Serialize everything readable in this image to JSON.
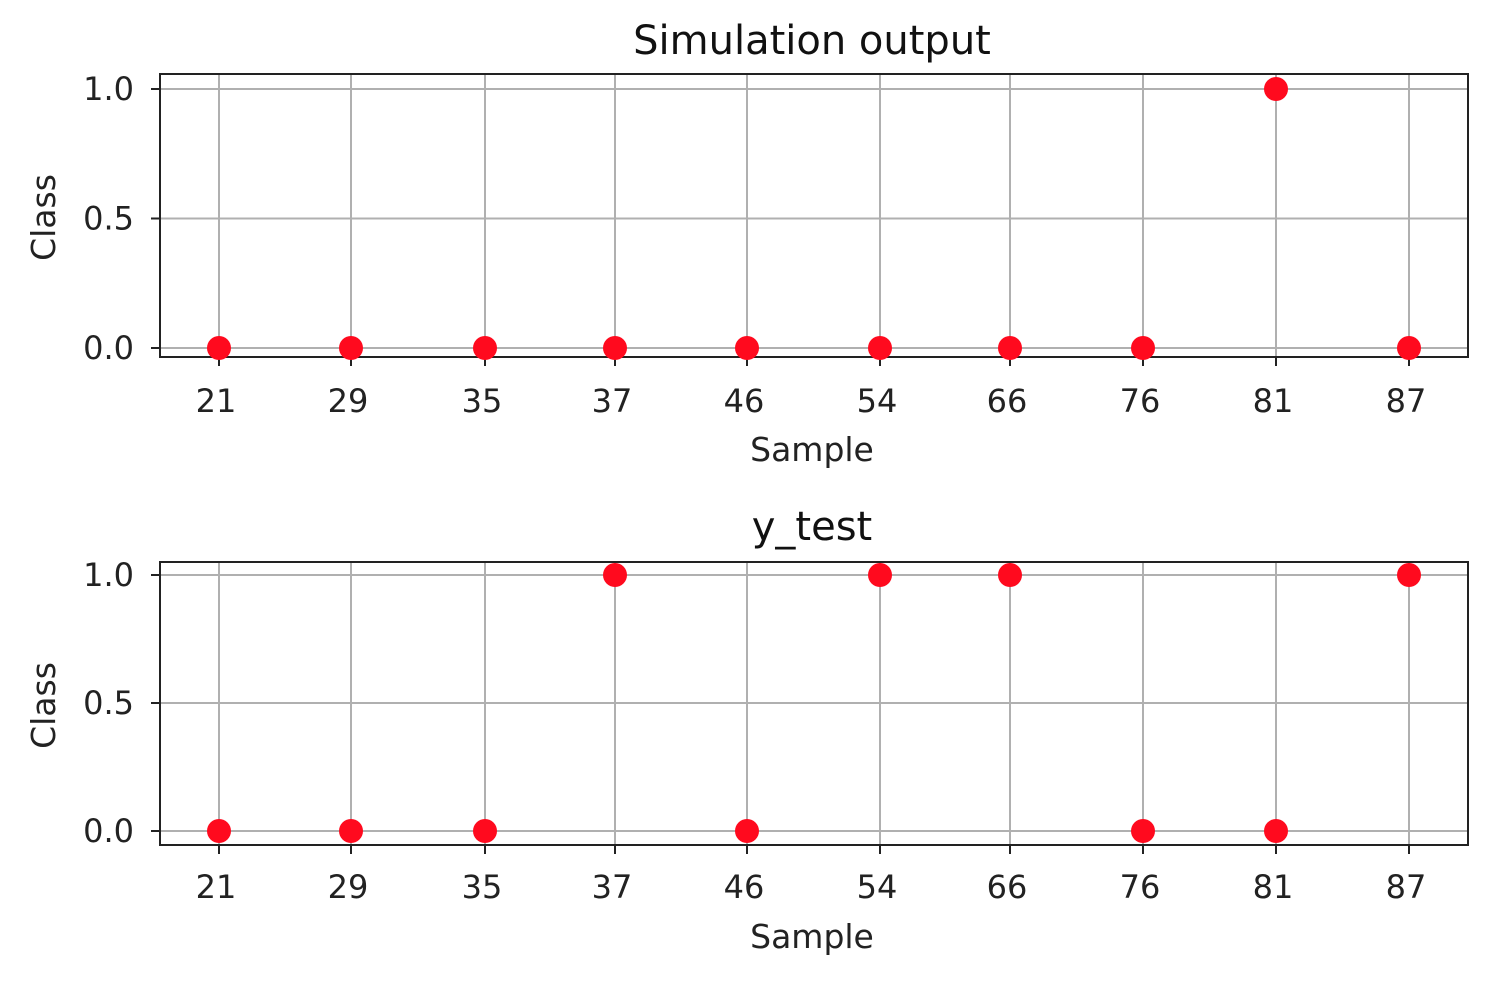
{
  "chart_data": [
    {
      "type": "scatter",
      "title": "Simulation output",
      "xlabel": "Sample",
      "ylabel": "Class",
      "categories": [
        "21",
        "29",
        "35",
        "37",
        "46",
        "54",
        "66",
        "76",
        "81",
        "87"
      ],
      "values": [
        0,
        0,
        0,
        0,
        0,
        0,
        0,
        0,
        1,
        0
      ],
      "yticks": [
        "0.0",
        "0.5",
        "1.0"
      ],
      "ylim": [
        0,
        1
      ],
      "grid": true,
      "marker_color": "#ff0a1e"
    },
    {
      "type": "scatter",
      "title": "y_test",
      "xlabel": "Sample",
      "ylabel": "Class",
      "categories": [
        "21",
        "29",
        "35",
        "37",
        "46",
        "54",
        "66",
        "76",
        "81",
        "87"
      ],
      "values": [
        0,
        0,
        0,
        1,
        0,
        1,
        1,
        0,
        0,
        1
      ],
      "yticks": [
        "0.0",
        "0.5",
        "1.0"
      ],
      "ylim": [
        0,
        1
      ],
      "grid": true,
      "marker_color": "#ff0a1e"
    }
  ]
}
